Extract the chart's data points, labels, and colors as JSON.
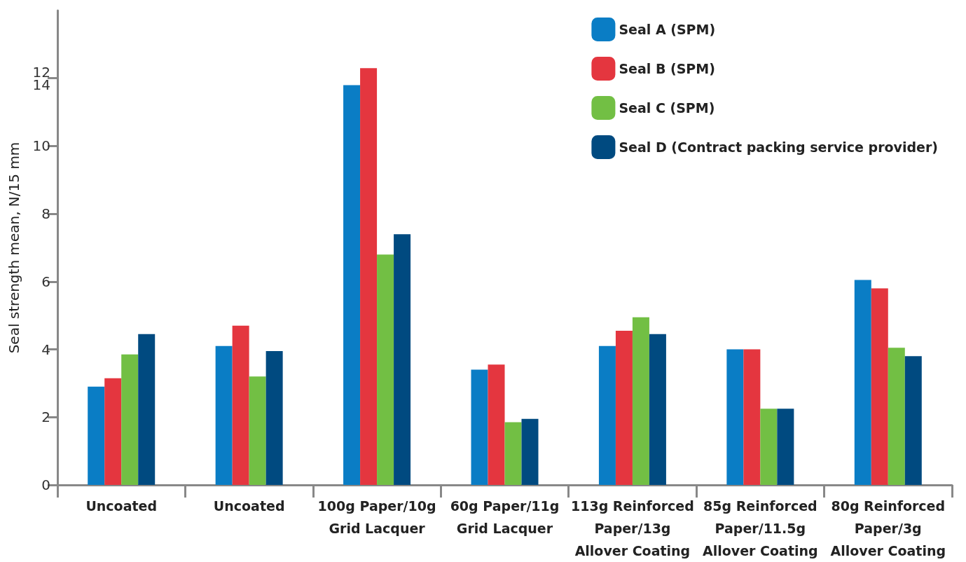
{
  "chart_data": {
    "type": "bar",
    "ylabel": "Seal strength mean, N/15 mm",
    "categories": [
      "Uncoated",
      "Uncoated",
      "100g Paper/10g\nGrid Lacquer",
      "60g Paper/11g\nGrid Lacquer",
      "113g Reinforced\nPaper/13g\nAllover Coating",
      "85g Reinforced\nPaper/11.5g\nAllover Coating",
      "80g Reinforced\nPaper/3g\nAllover Coating"
    ],
    "series": [
      {
        "name": "Seal A (SPM)",
        "color": "#0a7dc5",
        "values": [
          2.9,
          4.1,
          11.8,
          3.4,
          4.1,
          4.0,
          6.05
        ]
      },
      {
        "name": "Seal B (SPM)",
        "color": "#e4363f",
        "values": [
          3.15,
          4.7,
          12.3,
          3.55,
          4.55,
          4.0,
          5.8
        ]
      },
      {
        "name": "Seal C (SPM)",
        "color": "#72bf44",
        "values": [
          3.85,
          3.2,
          6.8,
          1.85,
          4.95,
          2.25,
          4.05
        ]
      },
      {
        "name": "Seal D (Contract packing service provider)",
        "color": "#004a80",
        "values": [
          4.45,
          3.95,
          7.4,
          1.95,
          4.45,
          2.25,
          3.8
        ]
      }
    ],
    "ylim": [
      0,
      14
    ],
    "yticks": [
      0,
      2,
      4,
      6,
      8,
      10,
      {
        "value": 12,
        "label": "12\n14"
      }
    ],
    "grid": false,
    "legend": "top right"
  }
}
